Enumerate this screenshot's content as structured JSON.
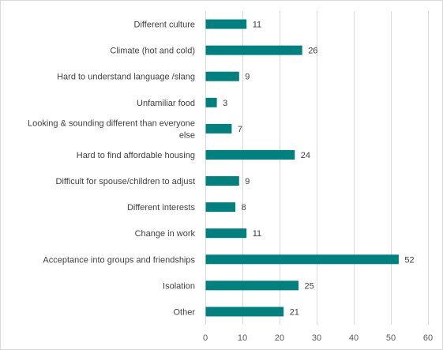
{
  "chart_data": {
    "type": "bar",
    "orientation": "horizontal",
    "title": "",
    "xlabel": "",
    "ylabel": "",
    "categories": [
      "Different culture",
      "Climate (hot and cold)",
      "Hard to understand language /slang",
      "Unfamiliar food",
      "Looking & sounding different than everyone else",
      "Hard to find affordable housing",
      "Difficult for spouse/children to adjust",
      "Different interests",
      "Change in work",
      "Acceptance into groups and friendships",
      "Isolation",
      "Other"
    ],
    "category_lines": [
      [
        "Different culture"
      ],
      [
        "Climate (hot and cold)"
      ],
      [
        "Hard to understand language /slang"
      ],
      [
        "Unfamiliar food"
      ],
      [
        "Looking & sounding different than everyone",
        "else"
      ],
      [
        "Hard to find affordable housing"
      ],
      [
        "Difficult for spouse/children to adjust"
      ],
      [
        "Different interests"
      ],
      [
        "Change in work"
      ],
      [
        "Acceptance into groups and friendships"
      ],
      [
        "Isolation"
      ],
      [
        "Other"
      ]
    ],
    "values": [
      11,
      26,
      9,
      3,
      7,
      24,
      9,
      8,
      11,
      52,
      25,
      21
    ],
    "xlim": [
      0,
      60
    ],
    "xticks": [
      0,
      10,
      20,
      30,
      40,
      50,
      60
    ],
    "grid": true,
    "legend": "none",
    "bar_color": "#00807F",
    "grid_color": "#d9d9d9"
  }
}
